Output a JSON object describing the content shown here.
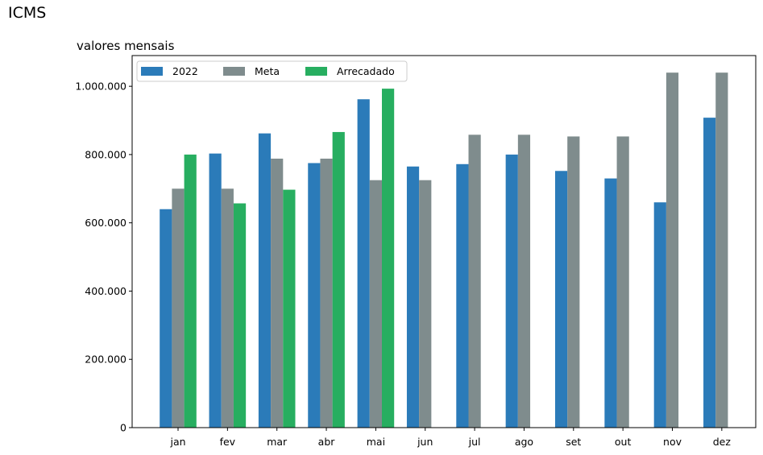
{
  "page_title": "ICMS",
  "chart_data": {
    "type": "bar",
    "title": "valores mensais",
    "xlabel": "",
    "ylabel": "",
    "categories": [
      "jan",
      "fev",
      "mar",
      "abr",
      "mai",
      "jun",
      "jul",
      "ago",
      "set",
      "out",
      "nov",
      "dez"
    ],
    "series": [
      {
        "name": "2022",
        "color": "#2b7bb9",
        "values": [
          640000,
          803000,
          862000,
          775000,
          962000,
          765000,
          772000,
          800000,
          752000,
          730000,
          660000,
          908000
        ]
      },
      {
        "name": "Meta",
        "color": "#7f8c8d",
        "values": [
          700000,
          700000,
          788000,
          788000,
          725000,
          725000,
          858000,
          858000,
          853000,
          853000,
          1040000,
          1040000
        ]
      },
      {
        "name": "Arrecadado",
        "color": "#27ae60",
        "values": [
          800000,
          657000,
          697000,
          866000,
          993000,
          null,
          null,
          null,
          null,
          null,
          null,
          null
        ]
      }
    ],
    "ylim": [
      0,
      1090000
    ],
    "yticks": [
      0,
      200000,
      400000,
      600000,
      800000,
      1000000
    ],
    "ytick_labels": [
      "0",
      "200.000",
      "400.000",
      "600.000",
      "800.000",
      "1.000.000"
    ],
    "grid": false,
    "legend_position": "top-left"
  }
}
